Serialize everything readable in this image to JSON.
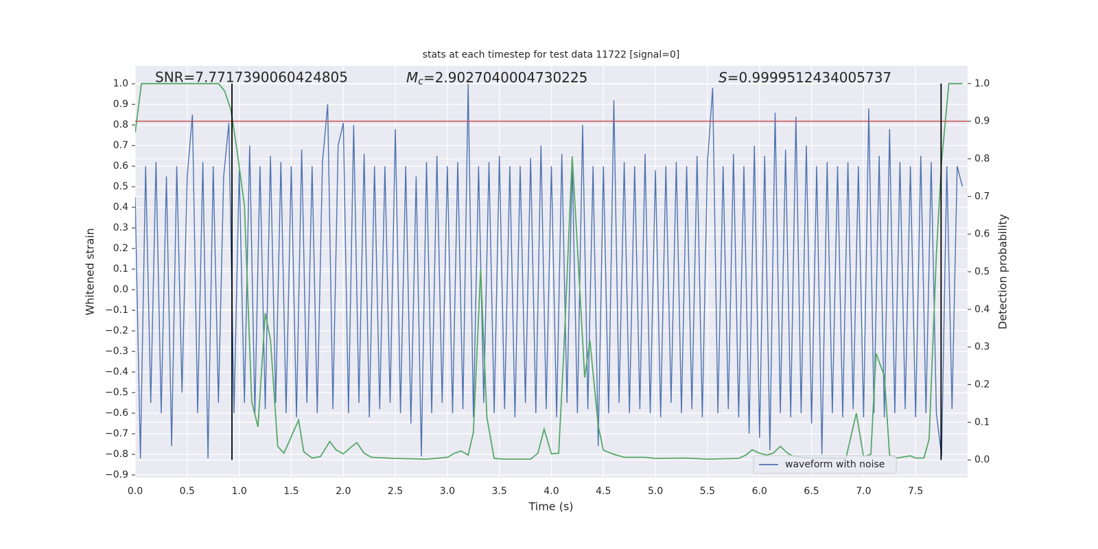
{
  "chart_data": {
    "type": "line",
    "title": "stats at each timestep for test data 11722 [signal=0]",
    "xlabel": "Time (s)",
    "ylabel": "Whitened strain",
    "y2label": "Detection probability",
    "xlim": [
      0,
      8
    ],
    "ylim": [
      -0.913,
      1.087
    ],
    "y2lim": [
      -0.047,
      1.047
    ],
    "xticks": [
      {
        "value": 0,
        "label": "0.0"
      },
      0.5,
      {
        "value": 1,
        "label": "1.0"
      },
      1.5,
      {
        "value": 2,
        "label": "2.0"
      },
      2.5,
      {
        "value": 3,
        "label": "3.0"
      },
      3.5,
      {
        "value": 4,
        "label": "4.0"
      },
      4.5,
      {
        "value": 5,
        "label": "5.0"
      },
      5.5,
      {
        "value": 6,
        "label": "6.0"
      },
      6.5,
      {
        "value": 7,
        "label": "7.0"
      },
      7.5
    ],
    "yticks": [
      {
        "value": -0.9,
        "label": "−0.9"
      },
      {
        "value": -0.8,
        "label": "−0.8"
      },
      {
        "value": -0.7,
        "label": "−0.7"
      },
      {
        "value": -0.6,
        "label": "−0.6"
      },
      {
        "value": -0.5,
        "label": "−0.5"
      },
      {
        "value": -0.4,
        "label": "−0.4"
      },
      {
        "value": -0.3,
        "label": "−0.3"
      },
      {
        "value": -0.2,
        "label": "−0.2"
      },
      {
        "value": -0.1,
        "label": "−0.1"
      },
      {
        "value": 0,
        "label": "0.0"
      },
      0.1,
      0.2,
      0.3,
      0.4,
      0.5,
      0.6,
      0.7,
      0.8,
      0.9,
      {
        "value": 1,
        "label": "1.0"
      }
    ],
    "y2ticks": [
      {
        "value": 0,
        "label": "0.0"
      },
      0.1,
      0.2,
      0.3,
      0.4,
      0.5,
      0.6,
      0.7,
      0.8,
      0.9,
      {
        "value": 1,
        "label": "1.0"
      }
    ],
    "grid": true,
    "legend": "lower right",
    "series": [
      {
        "name": "waveform with noise",
        "color": "#4c72b0",
        "x": [
          0,
          0.05,
          0.1,
          0.15,
          0.2,
          0.25,
          0.3,
          0.35,
          0.4,
          0.45,
          0.5,
          0.55,
          0.6,
          0.65,
          0.7,
          0.75,
          0.8,
          0.85,
          0.9,
          0.95,
          1,
          1.05,
          1.1,
          1.15,
          1.2,
          1.25,
          1.3,
          1.35,
          1.4,
          1.45,
          1.5,
          1.55,
          1.6,
          1.65,
          1.7,
          1.75,
          1.8,
          1.85,
          1.9,
          1.95,
          2,
          2.05,
          2.1,
          2.15,
          2.2,
          2.25,
          2.3,
          2.35,
          2.4,
          2.45,
          2.5,
          2.55,
          2.6,
          2.65,
          2.7,
          2.75,
          2.8,
          2.85,
          2.9,
          2.95,
          3,
          3.05,
          3.1,
          3.15,
          3.2,
          3.25,
          3.3,
          3.35,
          3.4,
          3.45,
          3.5,
          3.55,
          3.6,
          3.65,
          3.7,
          3.75,
          3.8,
          3.85,
          3.9,
          3.95,
          4,
          4.05,
          4.1,
          4.15,
          4.2,
          4.25,
          4.3,
          4.35,
          4.4,
          4.45,
          4.5,
          4.55,
          4.6,
          4.65,
          4.7,
          4.75,
          4.8,
          4.85,
          4.9,
          4.95,
          5,
          5.05,
          5.1,
          5.15,
          5.2,
          5.25,
          5.3,
          5.35,
          5.4,
          5.45,
          5.5,
          5.55,
          5.6,
          5.65,
          5.7,
          5.75,
          5.8,
          5.85,
          5.9,
          5.95,
          6,
          6.05,
          6.1,
          6.15,
          6.2,
          6.25,
          6.3,
          6.35,
          6.4,
          6.45,
          6.5,
          6.55,
          6.6,
          6.65,
          6.7,
          6.75,
          6.8,
          6.85,
          6.9,
          6.95,
          7,
          7.05,
          7.1,
          7.15,
          7.2,
          7.25,
          7.3,
          7.35,
          7.4,
          7.45,
          7.5,
          7.55,
          7.6,
          7.65,
          7.7,
          7.75,
          7.8,
          7.85,
          7.9,
          7.95
        ],
        "values": [
          0.45,
          -0.82,
          0.6,
          -0.55,
          0.62,
          -0.6,
          0.55,
          -0.76,
          0.6,
          -0.5,
          0.55,
          0.85,
          -0.6,
          0.62,
          -0.82,
          0.6,
          -0.55,
          0.55,
          0.81,
          -0.6,
          0.58,
          -0.55,
          0.7,
          -0.6,
          0.6,
          -0.58,
          0.65,
          -0.55,
          0.62,
          -0.6,
          0.6,
          -0.62,
          0.68,
          -0.55,
          0.6,
          -0.6,
          0.62,
          0.9,
          -0.58,
          0.7,
          0.81,
          -0.6,
          0.8,
          -0.55,
          0.66,
          -0.62,
          0.6,
          -0.58,
          0.6,
          -0.55,
          0.78,
          -0.6,
          0.6,
          -0.65,
          0.55,
          -0.81,
          0.62,
          -0.6,
          0.65,
          -0.55,
          0.6,
          -0.6,
          0.62,
          -0.58,
          1.0,
          -0.62,
          0.6,
          -0.55,
          0.62,
          -0.6,
          0.65,
          -0.58,
          0.6,
          -0.62,
          0.6,
          -0.55,
          0.64,
          -0.6,
          0.7,
          -0.58,
          0.6,
          -0.62,
          0.66,
          -0.55,
          0.62,
          -0.6,
          0.8,
          -0.58,
          0.6,
          -0.76,
          0.6,
          -0.6,
          0.92,
          -0.55,
          0.62,
          -0.6,
          0.6,
          -0.58,
          0.66,
          -0.6,
          0.58,
          -0.62,
          0.6,
          -0.55,
          0.62,
          -0.6,
          0.6,
          -0.58,
          0.65,
          -0.62,
          0.62,
          0.98,
          -0.6,
          0.6,
          -0.58,
          0.66,
          -0.62,
          0.6,
          -0.7,
          0.7,
          -0.72,
          0.65,
          -0.78,
          0.86,
          -0.6,
          0.68,
          -0.62,
          0.84,
          -0.6,
          0.7,
          -0.65,
          0.6,
          -0.8,
          0.62,
          -0.6,
          0.6,
          -0.62,
          0.62,
          -0.58,
          0.6,
          -0.62,
          0.88,
          -0.6,
          0.65,
          -0.62,
          0.78,
          -0.6,
          0.62,
          -0.58,
          0.6,
          -0.62,
          0.65,
          -0.6,
          0.62,
          -0.6,
          -0.81,
          0.6,
          -0.58,
          0.6,
          0.5
        ]
      }
    ],
    "probability": {
      "color": "#55a868",
      "axis": "y2",
      "x": [
        0,
        0.06,
        0.12,
        0.5,
        0.8,
        0.86,
        0.92,
        0.98,
        1.05,
        1.12,
        1.18,
        1.25,
        1.3,
        1.37,
        1.43,
        1.57,
        1.62,
        1.7,
        1.78,
        1.87,
        1.93,
        2,
        2.07,
        2.13,
        2.2,
        2.27,
        2.5,
        2.8,
        3,
        3.07,
        3.13,
        3.2,
        3.25,
        3.32,
        3.38,
        3.45,
        3.55,
        3.8,
        3.87,
        3.93,
        4,
        4.07,
        4.12,
        4.2,
        4.25,
        4.32,
        4.37,
        4.45,
        4.5,
        4.6,
        4.7,
        4.9,
        5,
        5.3,
        5.5,
        5.8,
        5.87,
        5.93,
        6,
        6.07,
        6.13,
        6.2,
        6.27,
        6.33,
        6.5,
        6.83,
        6.93,
        7,
        7.07,
        7.12,
        7.2,
        7.25,
        7.32,
        7.45,
        7.5,
        7.58,
        7.63,
        7.7,
        7.75,
        7.82,
        7.95
      ],
      "values": [
        0.87,
        1.0,
        1.0,
        1.0,
        1.0,
        0.98,
        0.93,
        0.82,
        0.675,
        0.155,
        0.088,
        0.39,
        0.32,
        0.036,
        0.018,
        0.106,
        0.022,
        0.005,
        0.009,
        0.049,
        0.027,
        0.016,
        0.033,
        0.046,
        0.018,
        0.007,
        0.004,
        0.002,
        0.007,
        0.018,
        0.024,
        0.013,
        0.073,
        0.505,
        0.113,
        0.004,
        0.002,
        0.002,
        0.018,
        0.082,
        0.016,
        0.018,
        0.292,
        0.806,
        0.566,
        0.219,
        0.318,
        0.091,
        0.026,
        0.015,
        0.007,
        0.007,
        0.004,
        0.005,
        0.002,
        0.004,
        0.013,
        0.027,
        0.018,
        0.013,
        0.018,
        0.036,
        0.018,
        0.009,
        0.005,
        0.004,
        0.124,
        0.009,
        0.015,
        0.283,
        0.223,
        0.013,
        0.005,
        0.011,
        0.005,
        0.005,
        0.055,
        0.547,
        0.794,
        1.0,
        1.0
      ]
    },
    "threshold": {
      "value": 0.9,
      "axis": "y2",
      "color": "#c44e52"
    },
    "vlines": {
      "x": [
        0.93,
        7.745
      ],
      "y2range": [
        0,
        1
      ],
      "color": "#000000"
    },
    "annotations": [
      {
        "text": "SNR=7.7717390060424805"
      },
      {
        "symbol": "M",
        "subscript": "c",
        "rest": "=2.9027040004730225"
      },
      {
        "symbol": "S",
        "rest": "=0.9999512434005737"
      }
    ]
  }
}
